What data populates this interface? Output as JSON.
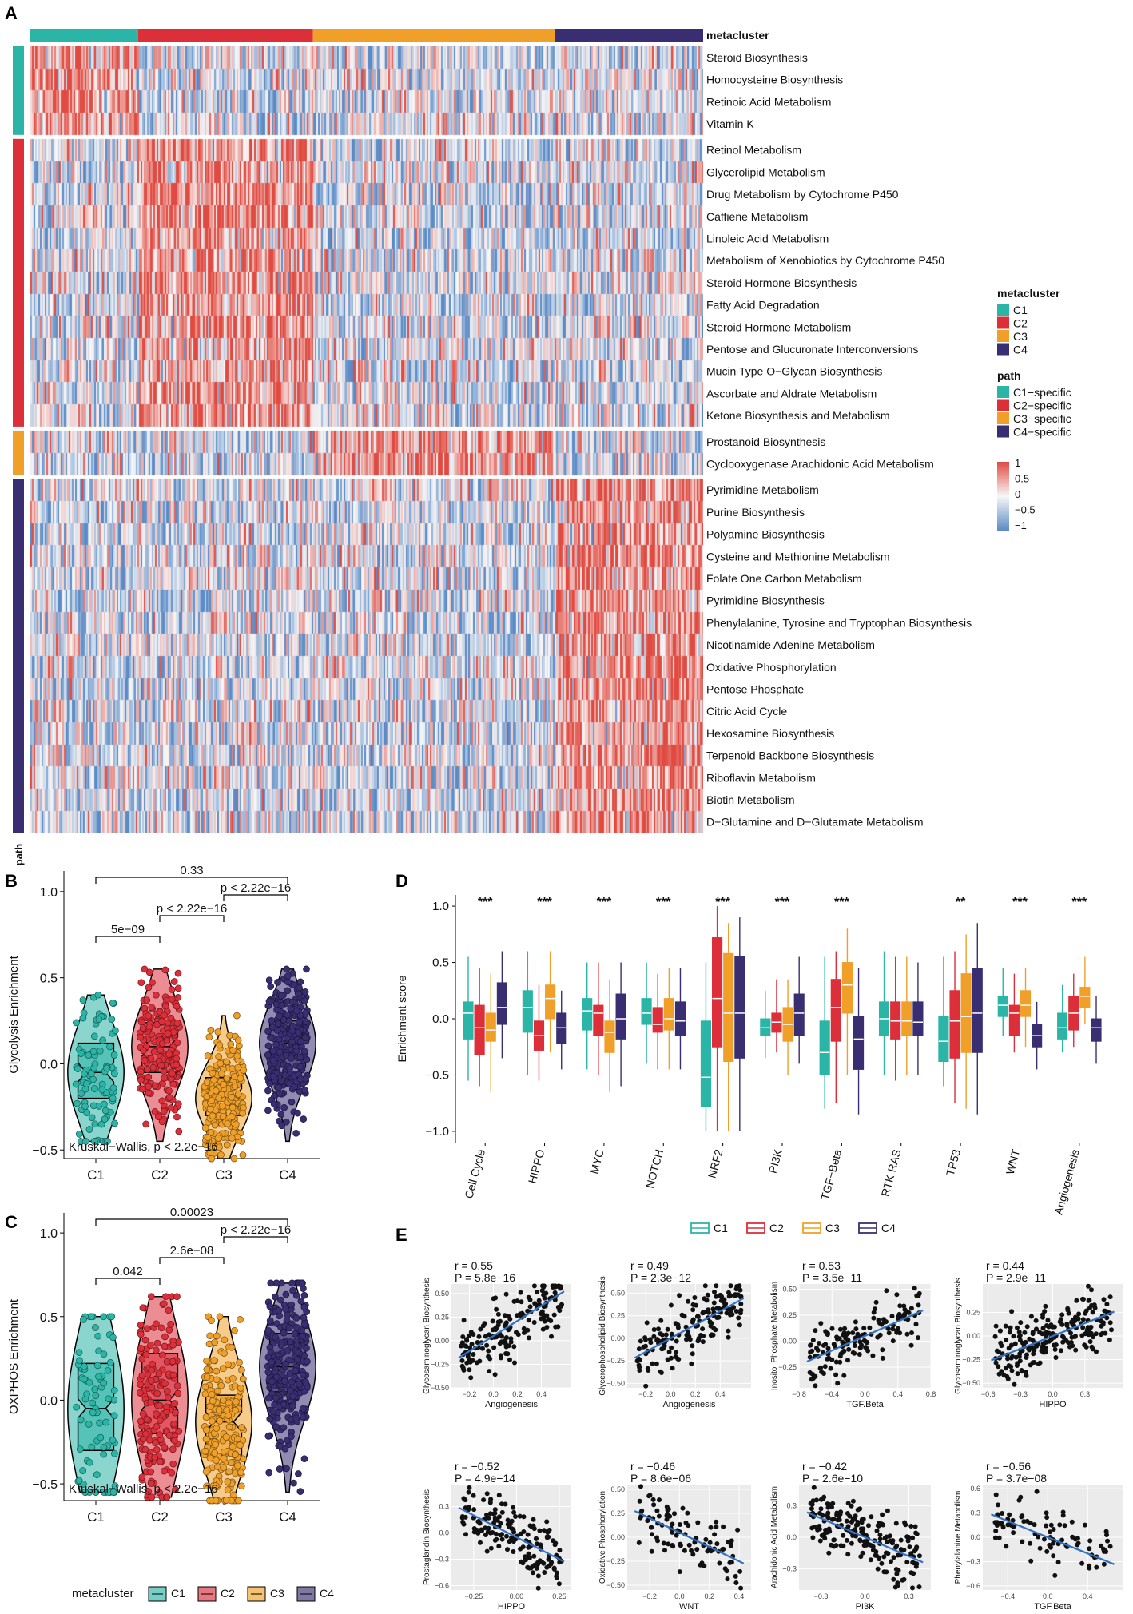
{
  "panel_labels": {
    "a": "A",
    "b": "B",
    "c": "C",
    "d": "D",
    "e": "E"
  },
  "colors": {
    "c1": "#2bb5a7",
    "c2": "#dc2f3a",
    "c3": "#f0a028",
    "c4": "#3a2e73",
    "high": "#e04a40",
    "low": "#5b8bc6",
    "mid": "#f7f7f7"
  },
  "heatmap": {
    "top_annotation_title": "metacluster",
    "side_annotation_title": "path",
    "group_fractions": [
      0.16,
      0.26,
      0.36,
      0.22
    ],
    "row_groups": [
      {
        "group": "C1",
        "rows": [
          "Steroid Biosynthesis",
          "Homocysteine Biosynthesis",
          "Retinoic Acid Metabolism",
          "Vitamin K"
        ]
      },
      {
        "group": "C2",
        "rows": [
          "Retinol Metabolism",
          "Glycerolipid Metabolism",
          "Drug Metabolism by Cytochrome P450",
          "Caffiene Metabolism",
          "Linoleic Acid Metabolism",
          "Metabolism of Xenobiotics by Cytochrome P450",
          "Steroid Hormone Biosynthesis",
          "Fatty Acid Degradation",
          "Steroid Hormone Metabolism",
          "Pentose and Glucuronate Interconversions",
          "Mucin Type O−Glycan Biosynthesis",
          "Ascorbate and Aldrate Metabolism",
          "Ketone Biosynthesis and Metabolism"
        ]
      },
      {
        "group": "C3",
        "rows": [
          "Prostanoid Biosynthesis",
          "Cyclooxygenase Arachidonic Acid Metabolism"
        ]
      },
      {
        "group": "C4",
        "rows": [
          "Pyrimidine Metabolism",
          "Purine Biosynthesis",
          "Polyamine Biosynthesis",
          "Cysteine and Methionine Metabolism",
          "Folate One Carbon Metabolism",
          "Pyrimidine Biosynthesis",
          "Phenylalanine, Tyrosine and Tryptophan Biosynthesis",
          "Nicotinamide Adenine Metabolism",
          "Oxidative Phosphorylation",
          "Pentose Phosphate",
          "Citric Acid Cycle",
          "Hexosamine Biosynthesis",
          "Terpenoid Backbone Biosynthesis",
          "Riboflavin Metabolism",
          "Biotin Metabolism",
          "D−Glutamine and D−Glutamate Metabolism"
        ]
      }
    ],
    "legend_metacluster": {
      "title": "metacluster",
      "items": [
        "C1",
        "C2",
        "C3",
        "C4"
      ]
    },
    "legend_path": {
      "title": "path",
      "items": [
        "C1−specific",
        "C2−specific",
        "C3−specific",
        "C4−specific"
      ]
    },
    "color_scale_ticks": [
      "1",
      "0.5",
      "0",
      "−0.5",
      "−1"
    ]
  },
  "chart_data": [
    {
      "type": "violin",
      "id": "B",
      "ylabel": "Glycolysis Enrichment",
      "ylim": [
        -0.55,
        1.12
      ],
      "yticks": [
        {
          "v": 1.0,
          "t": "1.0"
        },
        {
          "v": 0.5,
          "t": "0.5"
        },
        {
          "v": 0.0,
          "t": "0.0"
        },
        {
          "v": -0.5,
          "t": "−0.5"
        }
      ],
      "categories": [
        "C1",
        "C2",
        "C3",
        "C4"
      ],
      "medians": [
        -0.05,
        0.1,
        -0.2,
        0.12
      ],
      "q1": [
        -0.2,
        -0.05,
        -0.3,
        -0.02
      ],
      "q3": [
        0.12,
        0.24,
        -0.08,
        0.25
      ],
      "mins": [
        -0.45,
        -0.45,
        -0.55,
        -0.45
      ],
      "maxs": [
        0.4,
        0.55,
        0.28,
        0.55
      ],
      "n_points": [
        90,
        190,
        210,
        260
      ],
      "comparisons": [
        {
          "a": 1,
          "b": 4,
          "label": "0.33"
        },
        {
          "a": 3,
          "b": 4,
          "label": "p < 2.22e−16"
        },
        {
          "a": 2,
          "b": 3,
          "label": "p < 2.22e−16"
        },
        {
          "a": 1,
          "b": 2,
          "label": "5e−09"
        }
      ],
      "test_label": "Kruskal−Wallis, p < 2.2e−16"
    },
    {
      "type": "violin",
      "id": "C",
      "ylabel": "OXPHOS Enrichment",
      "ylim": [
        -0.6,
        1.12
      ],
      "yticks": [
        {
          "v": 1.0,
          "t": "1.0"
        },
        {
          "v": 0.5,
          "t": "0.5"
        },
        {
          "v": 0.0,
          "t": "0.0"
        },
        {
          "v": -0.5,
          "t": "−0.5"
        }
      ],
      "categories": [
        "C1",
        "C2",
        "C3",
        "C4"
      ],
      "medians": [
        -0.05,
        0.0,
        -0.13,
        0.2
      ],
      "q1": [
        -0.3,
        -0.2,
        -0.33,
        0.05
      ],
      "q3": [
        0.22,
        0.28,
        0.03,
        0.4
      ],
      "mins": [
        -0.55,
        -0.58,
        -0.6,
        -0.55
      ],
      "maxs": [
        0.5,
        0.62,
        0.5,
        0.7
      ],
      "n_points": [
        80,
        170,
        200,
        250
      ],
      "comparisons": [
        {
          "a": 1,
          "b": 4,
          "label": "0.00023"
        },
        {
          "a": 3,
          "b": 4,
          "label": "p < 2.22e−16"
        },
        {
          "a": 2,
          "b": 3,
          "label": "2.6e−08"
        },
        {
          "a": 1,
          "b": 2,
          "label": "0.042"
        }
      ],
      "test_label": "Kruskal−Wallis, p < 2.2e−16"
    },
    {
      "type": "boxplot",
      "id": "D",
      "ylabel": "Enrichment score",
      "ylim": [
        -1.1,
        1.1
      ],
      "yticks": [
        {
          "v": 1.0,
          "t": "1.0"
        },
        {
          "v": 0.5,
          "t": "0.5"
        },
        {
          "v": 0.0,
          "t": "0.0"
        },
        {
          "v": -0.5,
          "t": "−0.5"
        },
        {
          "v": -1.0,
          "t": "−1.0"
        }
      ],
      "categories": [
        "Cell Cycle",
        "HIPPO",
        "MYC",
        "NOTCH",
        "NRF2",
        "PI3K",
        "TGF−Beta",
        "RTK RAS",
        "TP53",
        "WNT",
        "Angiogenesis"
      ],
      "significance": [
        "***",
        "***",
        "***",
        "***",
        "***",
        "***",
        "***",
        "",
        "**",
        "***",
        "***"
      ],
      "series": [
        {
          "name": "C1",
          "boxes": [
            [
              -0.18,
              0.05,
              0.15,
              -0.55,
              0.55
            ],
            [
              -0.12,
              0.1,
              0.25,
              -0.5,
              0.6
            ],
            [
              -0.1,
              0.07,
              0.18,
              -0.45,
              0.5
            ],
            [
              -0.05,
              0.05,
              0.18,
              -0.4,
              0.5
            ],
            [
              -0.78,
              -0.52,
              -0.02,
              -1.0,
              0.5
            ],
            [
              -0.15,
              -0.08,
              0.0,
              -0.35,
              0.25
            ],
            [
              -0.5,
              -0.3,
              -0.02,
              -0.8,
              0.55
            ],
            [
              -0.15,
              0.0,
              0.15,
              -0.5,
              0.6
            ],
            [
              -0.38,
              -0.2,
              0.02,
              -0.6,
              0.55
            ],
            [
              0.02,
              0.12,
              0.2,
              -0.15,
              0.45
            ],
            [
              -0.18,
              -0.08,
              0.05,
              -0.3,
              0.3
            ]
          ]
        },
        {
          "name": "C2",
          "boxes": [
            [
              -0.32,
              -0.08,
              0.12,
              -0.6,
              0.45
            ],
            [
              -0.28,
              -0.15,
              -0.02,
              -0.55,
              0.3
            ],
            [
              -0.15,
              0.05,
              0.12,
              -0.5,
              0.5
            ],
            [
              -0.12,
              -0.05,
              0.1,
              -0.45,
              0.4
            ],
            [
              -0.25,
              0.18,
              0.72,
              -1.0,
              1.0
            ],
            [
              -0.12,
              -0.03,
              0.05,
              -0.3,
              0.35
            ],
            [
              -0.2,
              0.1,
              0.35,
              -0.75,
              0.6
            ],
            [
              -0.18,
              -0.02,
              0.15,
              -0.55,
              0.55
            ],
            [
              -0.35,
              -0.02,
              0.25,
              -0.75,
              0.6
            ],
            [
              -0.15,
              0.05,
              0.12,
              -0.3,
              0.4
            ],
            [
              -0.1,
              0.05,
              0.2,
              -0.25,
              0.4
            ]
          ]
        },
        {
          "name": "C3",
          "boxes": [
            [
              -0.2,
              -0.1,
              0.05,
              -0.65,
              0.4
            ],
            [
              0.0,
              0.18,
              0.3,
              -0.3,
              0.6
            ],
            [
              -0.3,
              -0.12,
              -0.02,
              -0.65,
              0.35
            ],
            [
              -0.1,
              0.0,
              0.18,
              -0.45,
              0.45
            ],
            [
              -0.38,
              0.05,
              0.58,
              -1.0,
              0.85
            ],
            [
              -0.2,
              -0.05,
              0.1,
              -0.5,
              0.35
            ],
            [
              0.05,
              0.3,
              0.5,
              -0.5,
              0.8
            ],
            [
              -0.15,
              -0.02,
              0.15,
              -0.5,
              0.55
            ],
            [
              -0.3,
              0.02,
              0.4,
              -0.8,
              0.75
            ],
            [
              0.02,
              0.12,
              0.25,
              -0.25,
              0.45
            ],
            [
              0.1,
              0.2,
              0.28,
              -0.05,
              0.55
            ]
          ]
        },
        {
          "name": "C4",
          "boxes": [
            [
              -0.05,
              0.1,
              0.32,
              -0.35,
              0.6
            ],
            [
              -0.22,
              -0.08,
              0.05,
              -0.45,
              0.25
            ],
            [
              -0.18,
              0.0,
              0.22,
              -0.6,
              0.5
            ],
            [
              -0.15,
              -0.02,
              0.15,
              -0.45,
              0.45
            ],
            [
              -0.35,
              0.05,
              0.55,
              -1.0,
              0.9
            ],
            [
              -0.15,
              0.05,
              0.22,
              -0.4,
              0.55
            ],
            [
              -0.45,
              -0.18,
              0.02,
              -0.85,
              0.45
            ],
            [
              -0.15,
              -0.03,
              0.15,
              -0.5,
              0.5
            ],
            [
              -0.3,
              0.05,
              0.45,
              -0.85,
              0.85
            ],
            [
              -0.25,
              -0.15,
              -0.05,
              -0.45,
              0.15
            ],
            [
              -0.2,
              -0.08,
              0.0,
              -0.4,
              0.2
            ]
          ]
        }
      ],
      "legend": [
        "C1",
        "C2",
        "C3",
        "C4"
      ]
    },
    {
      "type": "scatter",
      "id": "E",
      "plots": [
        {
          "xlabel": "Angiogenesis",
          "ylabel": "Glycosaminoglycan Biosynthesis",
          "r": "r = 0.55",
          "p": "P = 5.8e−16",
          "xlim": [
            -0.35,
            0.65
          ],
          "ylim": [
            -0.5,
            0.6
          ],
          "xticks": [
            -0.2,
            0.0,
            0.2,
            0.4
          ],
          "yticks": [
            -0.5,
            -0.25,
            0.0,
            0.25,
            0.5
          ],
          "xtick_labels": [
            "−0.2",
            "0.0",
            "0.2",
            "0.4"
          ],
          "ytick_labels": [
            "−0.50",
            "−0.25",
            "0.00",
            "0.25",
            "0.50"
          ],
          "slope": 0.8,
          "intercept": 0.05,
          "n": 170
        },
        {
          "xlabel": "Angiogenesis",
          "ylabel": "Glycerophospholipid Biosynthesis",
          "r": "r = 0.49",
          "p": "P = 2.3e−12",
          "xlim": [
            -0.35,
            0.65
          ],
          "ylim": [
            -0.55,
            0.6
          ],
          "xticks": [
            -0.2,
            0.0,
            0.2,
            0.4
          ],
          "yticks": [
            -0.5,
            -0.25,
            0.0,
            0.25,
            0.5
          ],
          "xtick_labels": [
            "−0.2",
            "0.0",
            "0.2",
            "0.4"
          ],
          "ytick_labels": [
            "−0.50",
            "−0.25",
            "0.00",
            "0.25",
            "0.50"
          ],
          "slope": 0.75,
          "intercept": 0.0,
          "n": 170
        },
        {
          "xlabel": "TGF.Beta",
          "ylabel": "Inositol Phosphate Metabolism",
          "r": "r = 0.53",
          "p": "P = 3.5e−11",
          "xlim": [
            -0.8,
            0.8
          ],
          "ylim": [
            -0.45,
            0.55
          ],
          "xticks": [
            -0.8,
            -0.4,
            0.0,
            0.4,
            0.8
          ],
          "yticks": [
            -0.25,
            0.0,
            0.25,
            0.5
          ],
          "xtick_labels": [
            "−0.8",
            "−0.4",
            "0.0",
            "0.4",
            "0.8"
          ],
          "ytick_labels": [
            "−0.25",
            "0.00",
            "0.25",
            "0.50"
          ],
          "slope": 0.35,
          "intercept": 0.05,
          "n": 150
        },
        {
          "xlabel": "HIPPO",
          "ylabel": "Glycosaminoglycan Biosynthesis",
          "r": "r = 0.44",
          "p": "P = 2.9e−11",
          "xlim": [
            -0.65,
            0.65
          ],
          "ylim": [
            -0.55,
            0.55
          ],
          "xticks": [
            -0.6,
            -0.3,
            0.0,
            0.3
          ],
          "yticks": [
            -0.5,
            -0.25,
            0.0,
            0.25
          ],
          "xtick_labels": [
            "−0.6",
            "−0.3",
            "0.0",
            "0.3"
          ],
          "ytick_labels": [
            "−0.50",
            "−0.25",
            "0.00",
            "0.25"
          ],
          "slope": 0.45,
          "intercept": 0.0,
          "n": 220
        },
        {
          "xlabel": "HIPPO",
          "ylabel": "Prostaglandin Biosynthesis",
          "r": "r = −0.52",
          "p": "P = 4.9e−14",
          "xlim": [
            -0.38,
            0.32
          ],
          "ylim": [
            -0.65,
            0.55
          ],
          "xticks": [
            -0.25,
            0.0,
            0.25
          ],
          "yticks": [
            -0.6,
            -0.3,
            0.0,
            0.3
          ],
          "xtick_labels": [
            "−0.25",
            "0.00",
            "0.25"
          ],
          "ytick_labels": [
            "−0.6",
            "−0.3",
            "0.0",
            "0.3"
          ],
          "slope": -1.0,
          "intercept": -0.05,
          "n": 170
        },
        {
          "xlabel": "WNT",
          "ylabel": "Oxidative Phosphorylation",
          "r": "r = −0.46",
          "p": "P = 8.6e−06",
          "xlim": [
            -0.35,
            0.48
          ],
          "ylim": [
            -0.55,
            0.55
          ],
          "xticks": [
            -0.2,
            0.0,
            0.2,
            0.4
          ],
          "yticks": [
            -0.5,
            -0.25,
            0.0,
            0.25,
            0.5
          ],
          "xtick_labels": [
            "−0.2",
            "0.0",
            "0.2",
            "0.4"
          ],
          "ytick_labels": [
            "−0.50",
            "−0.25",
            "0.00",
            "0.25",
            "0.50"
          ],
          "slope": -0.75,
          "intercept": 0.05,
          "n": 100
        },
        {
          "xlabel": "PI3K",
          "ylabel": "Arachidonic Acid Metabolism",
          "r": "r = −0.42",
          "p": "P = 2.6e−10",
          "xlim": [
            -0.45,
            0.45
          ],
          "ylim": [
            -0.5,
            0.5
          ],
          "xticks": [
            -0.3,
            0.0,
            0.3
          ],
          "yticks": [
            -0.3,
            0.0,
            0.3
          ],
          "xtick_labels": [
            "−0.3",
            "0.0",
            "0.3"
          ],
          "ytick_labels": [
            "−0.3",
            "0.0",
            "0.3"
          ],
          "slope": -0.6,
          "intercept": 0.0,
          "n": 200
        },
        {
          "xlabel": "TGF.Beta",
          "ylabel": "Phenylalanine Metabolism",
          "r": "r = −0.56",
          "p": "P = 3.7e−08",
          "xlim": [
            -0.65,
            0.75
          ],
          "ylim": [
            -0.65,
            0.65
          ],
          "xticks": [
            -0.4,
            0.0,
            0.4
          ],
          "yticks": [
            -0.6,
            -0.3,
            0.0,
            0.3,
            0.6
          ],
          "xtick_labels": [
            "−0.4",
            "0.0",
            "0.4"
          ],
          "ytick_labels": [
            "−0.6",
            "−0.3",
            "0.0",
            "0.3",
            "0.6"
          ],
          "slope": -0.5,
          "intercept": 0.0,
          "n": 90
        }
      ]
    }
  ],
  "bottom_legend": {
    "title": "metacluster",
    "items": [
      "C1",
      "C2",
      "C3",
      "C4"
    ]
  }
}
